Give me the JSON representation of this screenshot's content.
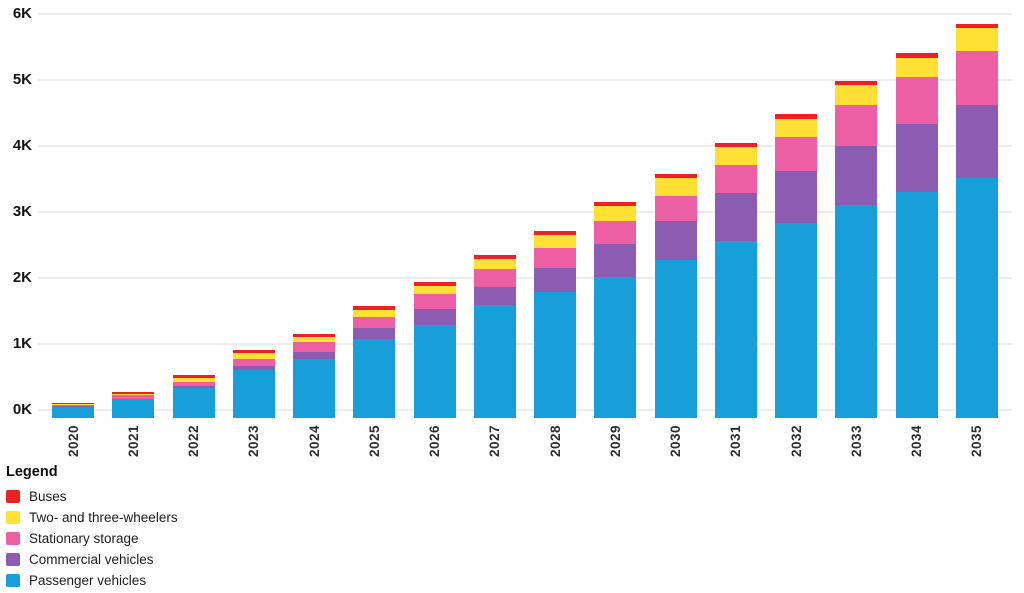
{
  "chart_data": {
    "type": "bar",
    "stacked": true,
    "categories": [
      "2020",
      "2021",
      "2022",
      "2023",
      "2024",
      "2025",
      "2026",
      "2027",
      "2028",
      "2029",
      "2030",
      "2031",
      "2032",
      "2033",
      "2034",
      "2035"
    ],
    "series": [
      {
        "name": "Passenger vehicles",
        "color": "#189ed9",
        "values": [
          0.05,
          0.16,
          0.33,
          0.6,
          0.78,
          1.07,
          1.29,
          1.59,
          1.79,
          2.02,
          2.27,
          2.56,
          2.83,
          3.1,
          3.31,
          3.51
        ]
      },
      {
        "name": "Commercial vehicles",
        "color": "#8c5bb2",
        "values": [
          0.01,
          0.01,
          0.04,
          0.07,
          0.1,
          0.17,
          0.24,
          0.28,
          0.37,
          0.5,
          0.6,
          0.73,
          0.79,
          0.9,
          1.02,
          1.11
        ]
      },
      {
        "name": "Stationary storage",
        "color": "#ed5fa4",
        "values": [
          0.02,
          0.05,
          0.06,
          0.1,
          0.15,
          0.17,
          0.23,
          0.27,
          0.3,
          0.34,
          0.38,
          0.42,
          0.52,
          0.62,
          0.71,
          0.82
        ]
      },
      {
        "name": "Two- and three-wheelers",
        "color": "#ffe135",
        "values": [
          0.01,
          0.02,
          0.06,
          0.09,
          0.08,
          0.1,
          0.12,
          0.15,
          0.2,
          0.24,
          0.26,
          0.27,
          0.27,
          0.3,
          0.3,
          0.35
        ]
      },
      {
        "name": "Buses",
        "color": "#ed2124",
        "values": [
          0.01,
          0.03,
          0.04,
          0.05,
          0.04,
          0.06,
          0.06,
          0.06,
          0.06,
          0.06,
          0.07,
          0.07,
          0.07,
          0.07,
          0.07,
          0.06
        ]
      }
    ],
    "totals": [
      0.1,
      0.27,
      0.53,
      0.91,
      1.15,
      1.57,
      1.94,
      2.35,
      2.72,
      3.16,
      3.58,
      4.05,
      4.48,
      4.99,
      5.41,
      5.85
    ],
    "unit": "K",
    "ylim": [
      0,
      6
    ],
    "yticks": [
      "0K",
      "1K",
      "2K",
      "3K",
      "4K",
      "5K",
      "6K"
    ],
    "xlabel": "",
    "ylabel": "",
    "title": "",
    "grid": "horizontal",
    "legend_title": "Legend",
    "legend_position": "bottom-left",
    "legend_order_top_to_bottom": [
      "Buses",
      "Two- and three-wheelers",
      "Stationary storage",
      "Commercial vehicles",
      "Passenger vehicles"
    ]
  }
}
